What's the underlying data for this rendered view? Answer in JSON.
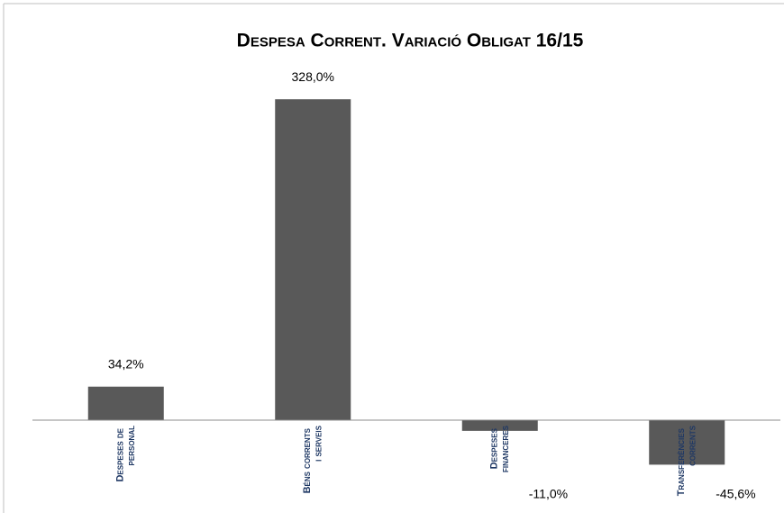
{
  "chart_data": {
    "type": "bar",
    "title": "Despesa Corrent. Variació Obligat 16/15",
    "categories": [
      "Despeses de personal",
      "Béns corrents i serveis",
      "Despeses financeres",
      "Transferències corrents"
    ],
    "values": [
      34.2,
      328.0,
      -11.0,
      -45.6
    ],
    "value_labels": [
      "34,2%",
      "328,0%",
      "-11,0%",
      "-45,6%"
    ],
    "color": "#595959",
    "ylim": [
      -95,
      400
    ]
  }
}
